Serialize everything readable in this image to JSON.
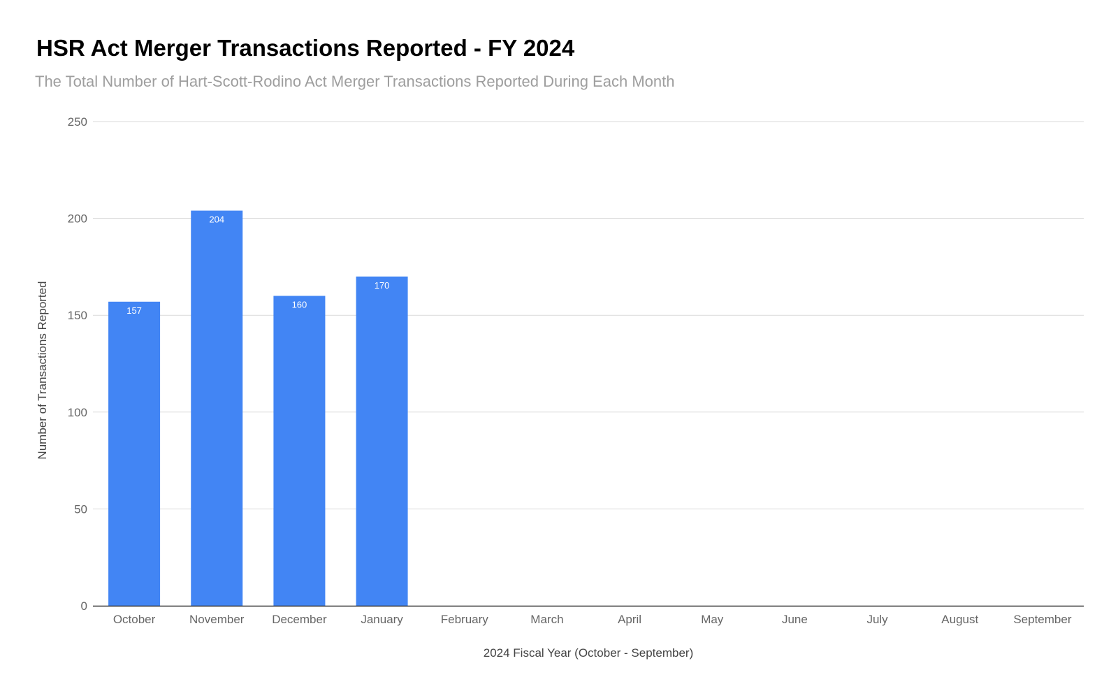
{
  "chart_data": {
    "type": "bar",
    "title": "HSR Act Merger Transactions Reported - FY 2024",
    "subtitle": "The Total Number of Hart-Scott-Rodino Act Merger Transactions Reported During Each Month",
    "xlabel": "2024 Fiscal Year (October - September)",
    "ylabel": "Number of Transactions Reported",
    "categories": [
      "October",
      "November",
      "December",
      "January",
      "February",
      "March",
      "April",
      "May",
      "June",
      "July",
      "August",
      "September"
    ],
    "values": [
      157,
      204,
      160,
      170,
      null,
      null,
      null,
      null,
      null,
      null,
      null,
      null
    ],
    "data_labels": [
      "157",
      "204",
      "160",
      "170",
      "",
      "",
      "",
      "",
      "",
      "",
      "",
      ""
    ],
    "ylim": [
      0,
      250
    ],
    "yticks": [
      0,
      50,
      100,
      150,
      200,
      250
    ],
    "ytick_labels": [
      "0",
      "50",
      "100",
      "150",
      "200",
      "250"
    ],
    "grid": true,
    "legend": "none",
    "bar_color": "#4285f4"
  }
}
